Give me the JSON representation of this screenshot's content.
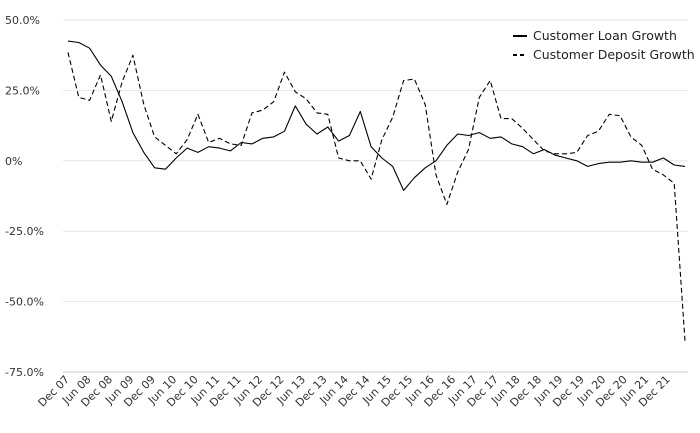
{
  "chart_data": {
    "type": "line",
    "ylim": [
      -75,
      50
    ],
    "y_ticks": [
      50,
      25,
      0,
      -25,
      -50,
      -75
    ],
    "y_tick_labels": [
      "50.0%",
      "25.0%",
      "0%",
      "-25.0%",
      "-50.0%",
      "-75.0%"
    ],
    "grid": true,
    "legend_position": "top-right",
    "x_tick_labels": [
      "Dec 07",
      "Jun 08",
      "Dec 08",
      "Jun 09",
      "Dec 09",
      "Jun 10",
      "Dec 10",
      "Jun 11",
      "Dec 11",
      "Jun 12",
      "Dec 12",
      "Jun 13",
      "Dec 13",
      "Jun 14",
      "Dec 14",
      "Jun 15",
      "Dec 15",
      "Jun 16",
      "Dec 16",
      "Jun 17",
      "Dec 17",
      "Jun 18",
      "Dec 18",
      "Jun 19",
      "Dec 19",
      "Jun 20",
      "Dec 20",
      "Jun 21",
      "Dec 21"
    ],
    "series": [
      {
        "name": "Customer Loan Growth",
        "style": "solid",
        "color": "#000000",
        "values": [
          42.5,
          42,
          40,
          34,
          30,
          21,
          10,
          3,
          -2.5,
          -3,
          1,
          4.5,
          3,
          5,
          4.5,
          3.5,
          6.5,
          6,
          8,
          8.5,
          10.5,
          19.5,
          13,
          9.5,
          12,
          7,
          9,
          17.5,
          5,
          1,
          -2,
          -10.5,
          -6,
          -2.5,
          0,
          5.5,
          9.5,
          9,
          10,
          8,
          8.5,
          6,
          5,
          2.5,
          4,
          2,
          1,
          0,
          -2,
          -1,
          -0.5,
          -0.5,
          0,
          -0.5,
          -0.5,
          1,
          -1.5,
          -2
        ]
      },
      {
        "name": "Customer Deposit Growth",
        "style": "dashed",
        "color": "#000000",
        "values": [
          38.5,
          22.5,
          21.5,
          30.5,
          14,
          28,
          37.5,
          20,
          8.5,
          5.5,
          2.5,
          7.5,
          16.5,
          6.5,
          8,
          6,
          5.5,
          17,
          18,
          21,
          31.5,
          24.5,
          22,
          17,
          16.5,
          1,
          0,
          0,
          -6.5,
          7.5,
          15.5,
          28.5,
          29,
          20,
          -5,
          -15.5,
          -4,
          4,
          22.5,
          28.5,
          15,
          15,
          11.5,
          7.5,
          3.5,
          2.5,
          2.5,
          3,
          9,
          10.5,
          16.5,
          16,
          8.5,
          5.5,
          -3,
          -5,
          -8,
          -64
        ]
      }
    ]
  }
}
